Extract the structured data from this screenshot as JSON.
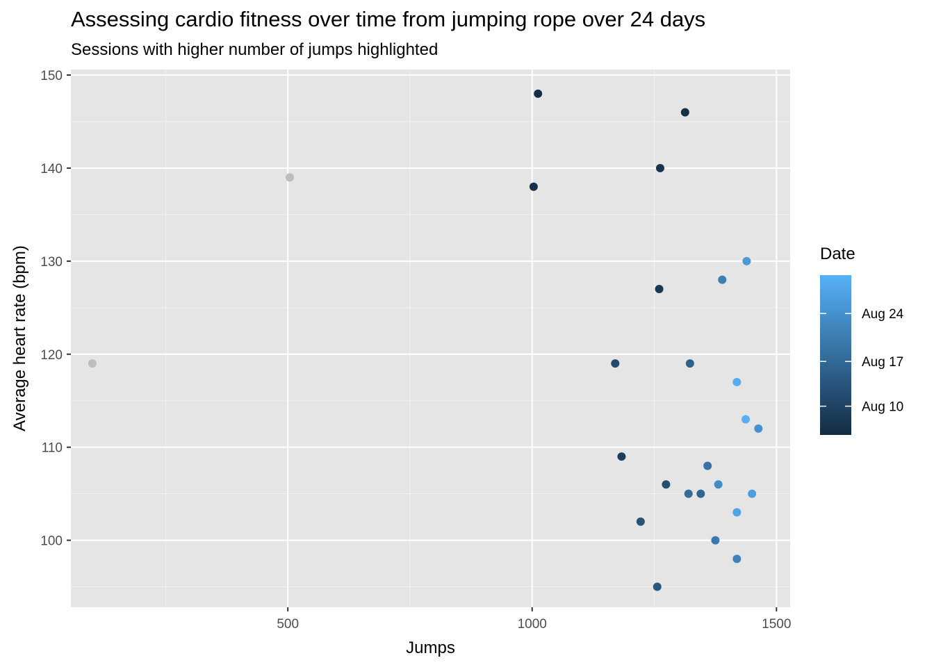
{
  "chart_data": {
    "type": "scatter",
    "title": "Assessing cardio fitness over time from jumping rope over 24 days",
    "subtitle": "Sessions with higher number of jumps highlighted",
    "xlabel": "Jumps",
    "ylabel": "Average heart rate (bpm)",
    "xlim": [
      56,
      1528
    ],
    "ylim": [
      92.8,
      150.6
    ],
    "x_ticks": [
      500,
      1000,
      1500
    ],
    "x_tick_labels": [
      "500",
      "1000",
      "1500"
    ],
    "y_ticks": [
      100,
      110,
      120,
      130,
      140,
      150
    ],
    "y_tick_labels": [
      "100",
      "110",
      "120",
      "130",
      "140",
      "150"
    ],
    "grid": true,
    "background": "#e5e5e5",
    "highlight_rule": "Sessions with jumps >= 1000 colored by date; others grey",
    "grey_color": "#bdbdbd",
    "legend": {
      "title": "Date",
      "position": "right",
      "color_low": "#132b43",
      "color_high": "#56b1f7",
      "labels": [
        "Aug 10",
        "Aug 17",
        "Aug 24"
      ],
      "label_fractions": [
        0.18,
        0.46,
        0.76
      ]
    },
    "points": [
      {
        "x": 100,
        "y": 119,
        "highlight": false
      },
      {
        "x": 504,
        "y": 139,
        "highlight": false
      },
      {
        "x": 1012,
        "y": 148,
        "highlight": true,
        "t": 0.02
      },
      {
        "x": 1003,
        "y": 138,
        "highlight": true,
        "t": 0.04
      },
      {
        "x": 1313,
        "y": 146,
        "highlight": true,
        "t": 0.03
      },
      {
        "x": 1262,
        "y": 140,
        "highlight": true,
        "t": 0.06
      },
      {
        "x": 1260,
        "y": 127,
        "highlight": true,
        "t": 0.1
      },
      {
        "x": 1170,
        "y": 119,
        "highlight": true,
        "t": 0.22
      },
      {
        "x": 1183,
        "y": 109,
        "highlight": true,
        "t": 0.14
      },
      {
        "x": 1274,
        "y": 106,
        "highlight": true,
        "t": 0.26
      },
      {
        "x": 1222,
        "y": 102,
        "highlight": true,
        "t": 0.3
      },
      {
        "x": 1256,
        "y": 95,
        "highlight": true,
        "t": 0.34
      },
      {
        "x": 1323,
        "y": 119,
        "highlight": true,
        "t": 0.4
      },
      {
        "x": 1320,
        "y": 105,
        "highlight": true,
        "t": 0.48
      },
      {
        "x": 1345,
        "y": 105,
        "highlight": true,
        "t": 0.44
      },
      {
        "x": 1359,
        "y": 108,
        "highlight": true,
        "t": 0.54
      },
      {
        "x": 1375,
        "y": 100,
        "highlight": true,
        "t": 0.58
      },
      {
        "x": 1389,
        "y": 128,
        "highlight": true,
        "t": 0.62
      },
      {
        "x": 1381,
        "y": 106,
        "highlight": true,
        "t": 0.72
      },
      {
        "x": 1419,
        "y": 98,
        "highlight": true,
        "t": 0.66
      },
      {
        "x": 1463,
        "y": 112,
        "highlight": true,
        "t": 0.76
      },
      {
        "x": 1439,
        "y": 130,
        "highlight": true,
        "t": 0.82
      },
      {
        "x": 1450,
        "y": 105,
        "highlight": true,
        "t": 0.86
      },
      {
        "x": 1419,
        "y": 103,
        "highlight": true,
        "t": 0.9
      },
      {
        "x": 1419,
        "y": 117,
        "highlight": true,
        "t": 0.97
      },
      {
        "x": 1437,
        "y": 113,
        "highlight": true,
        "t": 0.99
      }
    ]
  }
}
